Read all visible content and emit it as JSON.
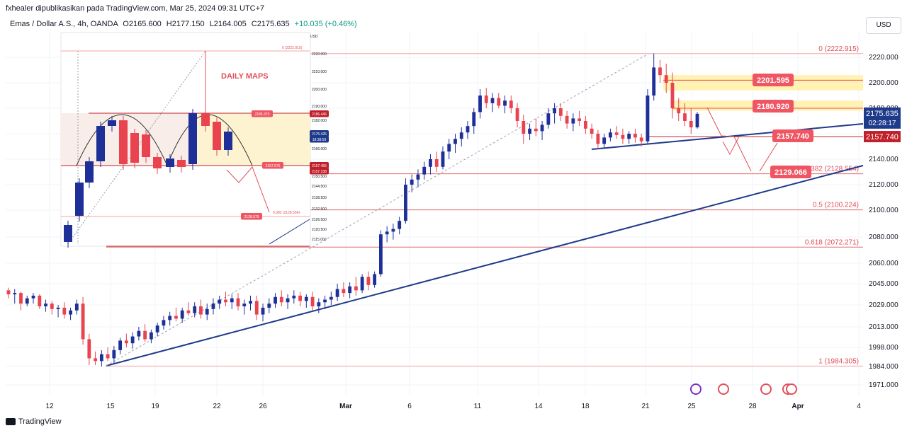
{
  "header": {
    "publisher": "fxhealer dipublikasikan pada TradingView.com, Mar 25, 2024 09:31 UTC+7"
  },
  "symbol_bar": {
    "name": "Emas / Dollar A.S., 4h, OANDA",
    "open": "O2165.600",
    "high": "H2177.150",
    "low": "L2164.005",
    "close": "C2175.635",
    "change": "+10.035 (+0.46%)"
  },
  "currency_button": "USD",
  "footer_logo": "TradingView",
  "colors": {
    "up": "#1e2f97",
    "down": "#e8434f",
    "trendline": "#1e3a8a",
    "fib": "#f0a0a0",
    "zone": "#fff2b3",
    "label_red": "#ef5562",
    "last_price_bg": "#1e3a8a"
  },
  "chart_data": {
    "type": "candlestick",
    "title": "",
    "xlabel": "",
    "ylabel": "",
    "ylim": [
      1960,
      2235
    ],
    "x_ticks": [
      "12",
      "15",
      "19",
      "22",
      "26",
      "Mar",
      "6",
      "11",
      "14",
      "18",
      "21",
      "25",
      "28",
      "Apr",
      "4"
    ],
    "y_ticks": [
      "2220.000",
      "2200.000",
      "2180.000",
      "2160.000",
      "2140.000",
      "2120.000",
      "2100.000",
      "2080.000",
      "2060.000",
      "2045.000",
      "2029.000",
      "2013.000",
      "1998.000",
      "1984.000",
      "1971.000"
    ],
    "last_price": {
      "value": "2175.635",
      "countdown": "02:28:17"
    },
    "level_label": "2157.740",
    "fib_levels": [
      {
        "label": "0 (2222.915)",
        "value": 2222.915
      },
      {
        "label": "0.382 (2128.554)",
        "value": 2128.554
      },
      {
        "label": "0.5 (2100.224)",
        "value": 2100.224
      },
      {
        "label": "0.618 (2072.271)",
        "value": 2072.271
      },
      {
        "label": "1 (1984.305)",
        "value": 1984.305
      }
    ],
    "annotations": [
      "2201.595",
      "2180.920",
      "2157.740",
      "2129.066"
    ],
    "inset": {
      "title": "DAILY MAPS",
      "currency": "USD",
      "fib_top": "0 (2222.915)",
      "fib_mid": "0.382 (2128.554)",
      "labels": [
        "2186.370",
        "2157.575",
        "2128.579"
      ],
      "price_boxes": [
        "2186.446",
        "2175.425",
        "18:38:59",
        "2157.455",
        "2157.238"
      ],
      "axis": [
        "2220.000",
        "2210.000",
        "2200.000",
        "2190.000",
        "2182.000",
        "2174.000",
        "2166.000",
        "2158.000",
        "2150.500",
        "2144.500",
        "2138.500",
        "2132.500",
        "2126.500",
        "2120.500",
        "2115.000"
      ]
    },
    "candles": [
      [
        2040,
        2042,
        2034,
        2037
      ],
      [
        2037,
        2041,
        2030,
        2038
      ],
      [
        2038,
        2039,
        2025,
        2030
      ],
      [
        2030,
        2036,
        2028,
        2034
      ],
      [
        2034,
        2038,
        2030,
        2036
      ],
      [
        2036,
        2037,
        2026,
        2028
      ],
      [
        2028,
        2033,
        2024,
        2030
      ],
      [
        2030,
        2032,
        2022,
        2026
      ],
      [
        2026,
        2029,
        2020,
        2027
      ],
      [
        2027,
        2031,
        2019,
        2022
      ],
      [
        2022,
        2027,
        2018,
        2025
      ],
      [
        2025,
        2033,
        2022,
        2030
      ],
      [
        2030,
        2035,
        2000,
        2004
      ],
      [
        2004,
        2008,
        1985,
        1990
      ],
      [
        1990,
        1995,
        1985,
        1988
      ],
      [
        1988,
        1996,
        1984,
        1993
      ],
      [
        1993,
        1998,
        1988,
        1990
      ],
      [
        1990,
        1999,
        1986,
        1996
      ],
      [
        1996,
        2005,
        1993,
        2003
      ],
      [
        2003,
        2008,
        1998,
        2001
      ],
      [
        2001,
        2009,
        1997,
        2006
      ],
      [
        2006,
        2013,
        2003,
        2010
      ],
      [
        2010,
        2015,
        2002,
        2004
      ],
      [
        2004,
        2011,
        2001,
        2009
      ],
      [
        2009,
        2016,
        2006,
        2014
      ],
      [
        2014,
        2021,
        2011,
        2018
      ],
      [
        2018,
        2024,
        2014,
        2021
      ],
      [
        2021,
        2027,
        2017,
        2019
      ],
      [
        2019,
        2027,
        2016,
        2025
      ],
      [
        2025,
        2031,
        2021,
        2023
      ],
      [
        2023,
        2031,
        2020,
        2028
      ],
      [
        2028,
        2033,
        2019,
        2022
      ],
      [
        2022,
        2030,
        2018,
        2026
      ],
      [
        2026,
        2034,
        2022,
        2030
      ],
      [
        2030,
        2036,
        2026,
        2033
      ],
      [
        2033,
        2039,
        2028,
        2031
      ],
      [
        2031,
        2037,
        2026,
        2034
      ],
      [
        2034,
        2038,
        2025,
        2028
      ],
      [
        2028,
        2033,
        2022,
        2030
      ],
      [
        2030,
        2036,
        2025,
        2032
      ],
      [
        2032,
        2036,
        2018,
        2022
      ],
      [
        2022,
        2030,
        2017,
        2027
      ],
      [
        2027,
        2034,
        2023,
        2030
      ],
      [
        2030,
        2038,
        2027,
        2035
      ],
      [
        2035,
        2040,
        2028,
        2031
      ],
      [
        2031,
        2037,
        2026,
        2034
      ],
      [
        2034,
        2040,
        2030,
        2036
      ],
      [
        2036,
        2039,
        2028,
        2032
      ],
      [
        2032,
        2037,
        2027,
        2035
      ],
      [
        2035,
        2039,
        2025,
        2028
      ],
      [
        2028,
        2034,
        2023,
        2031
      ],
      [
        2031,
        2036,
        2026,
        2033
      ],
      [
        2033,
        2039,
        2029,
        2035
      ],
      [
        2035,
        2045,
        2032,
        2041
      ],
      [
        2041,
        2046,
        2035,
        2038
      ],
      [
        2038,
        2046,
        2034,
        2043
      ],
      [
        2043,
        2050,
        2036,
        2040
      ],
      [
        2040,
        2052,
        2038,
        2050
      ],
      [
        2050,
        2054,
        2040,
        2044
      ],
      [
        2044,
        2054,
        2042,
        2052
      ],
      [
        2052,
        2085,
        2050,
        2082
      ],
      [
        2082,
        2088,
        2076,
        2084
      ],
      [
        2084,
        2090,
        2078,
        2086
      ],
      [
        2086,
        2095,
        2082,
        2092
      ],
      [
        2092,
        2125,
        2090,
        2120
      ],
      [
        2120,
        2128,
        2114,
        2124
      ],
      [
        2124,
        2132,
        2118,
        2128
      ],
      [
        2128,
        2138,
        2124,
        2134
      ],
      [
        2134,
        2144,
        2128,
        2140
      ],
      [
        2140,
        2146,
        2130,
        2134
      ],
      [
        2134,
        2150,
        2132,
        2146
      ],
      [
        2146,
        2156,
        2140,
        2152
      ],
      [
        2152,
        2160,
        2145,
        2156
      ],
      [
        2156,
        2165,
        2150,
        2161
      ],
      [
        2161,
        2170,
        2156,
        2166
      ],
      [
        2166,
        2180,
        2160,
        2177
      ],
      [
        2177,
        2195,
        2172,
        2190
      ],
      [
        2190,
        2196,
        2180,
        2184
      ],
      [
        2184,
        2192,
        2177,
        2188
      ],
      [
        2188,
        2192,
        2180,
        2182
      ],
      [
        2182,
        2190,
        2176,
        2186
      ],
      [
        2186,
        2190,
        2176,
        2180
      ],
      [
        2180,
        2184,
        2165,
        2170
      ],
      [
        2170,
        2175,
        2152,
        2160
      ],
      [
        2160,
        2168,
        2155,
        2164
      ],
      [
        2164,
        2172,
        2158,
        2162
      ],
      [
        2162,
        2170,
        2155,
        2167
      ],
      [
        2167,
        2180,
        2164,
        2176
      ],
      [
        2176,
        2184,
        2168,
        2180
      ],
      [
        2180,
        2184,
        2170,
        2174
      ],
      [
        2174,
        2178,
        2164,
        2168
      ],
      [
        2168,
        2176,
        2162,
        2172
      ],
      [
        2172,
        2178,
        2166,
        2170
      ],
      [
        2170,
        2174,
        2160,
        2164
      ],
      [
        2164,
        2168,
        2156,
        2160
      ],
      [
        2160,
        2163,
        2148,
        2152
      ],
      [
        2152,
        2160,
        2149,
        2157
      ],
      [
        2157,
        2164,
        2154,
        2161
      ],
      [
        2161,
        2166,
        2156,
        2159
      ],
      [
        2159,
        2164,
        2152,
        2156
      ],
      [
        2156,
        2162,
        2152,
        2160
      ],
      [
        2160,
        2164,
        2153,
        2157
      ],
      [
        2157,
        2160,
        2150,
        2154
      ],
      [
        2154,
        2195,
        2152,
        2190
      ],
      [
        2190,
        2223,
        2186,
        2212
      ],
      [
        2212,
        2218,
        2200,
        2206
      ],
      [
        2206,
        2215,
        2192,
        2200
      ],
      [
        2200,
        2208,
        2172,
        2180
      ],
      [
        2180,
        2188,
        2170,
        2176
      ],
      [
        2176,
        2184,
        2166,
        2170
      ],
      [
        2170,
        2180,
        2160,
        2165
      ],
      [
        2165,
        2177,
        2164,
        2175.635
      ]
    ]
  }
}
